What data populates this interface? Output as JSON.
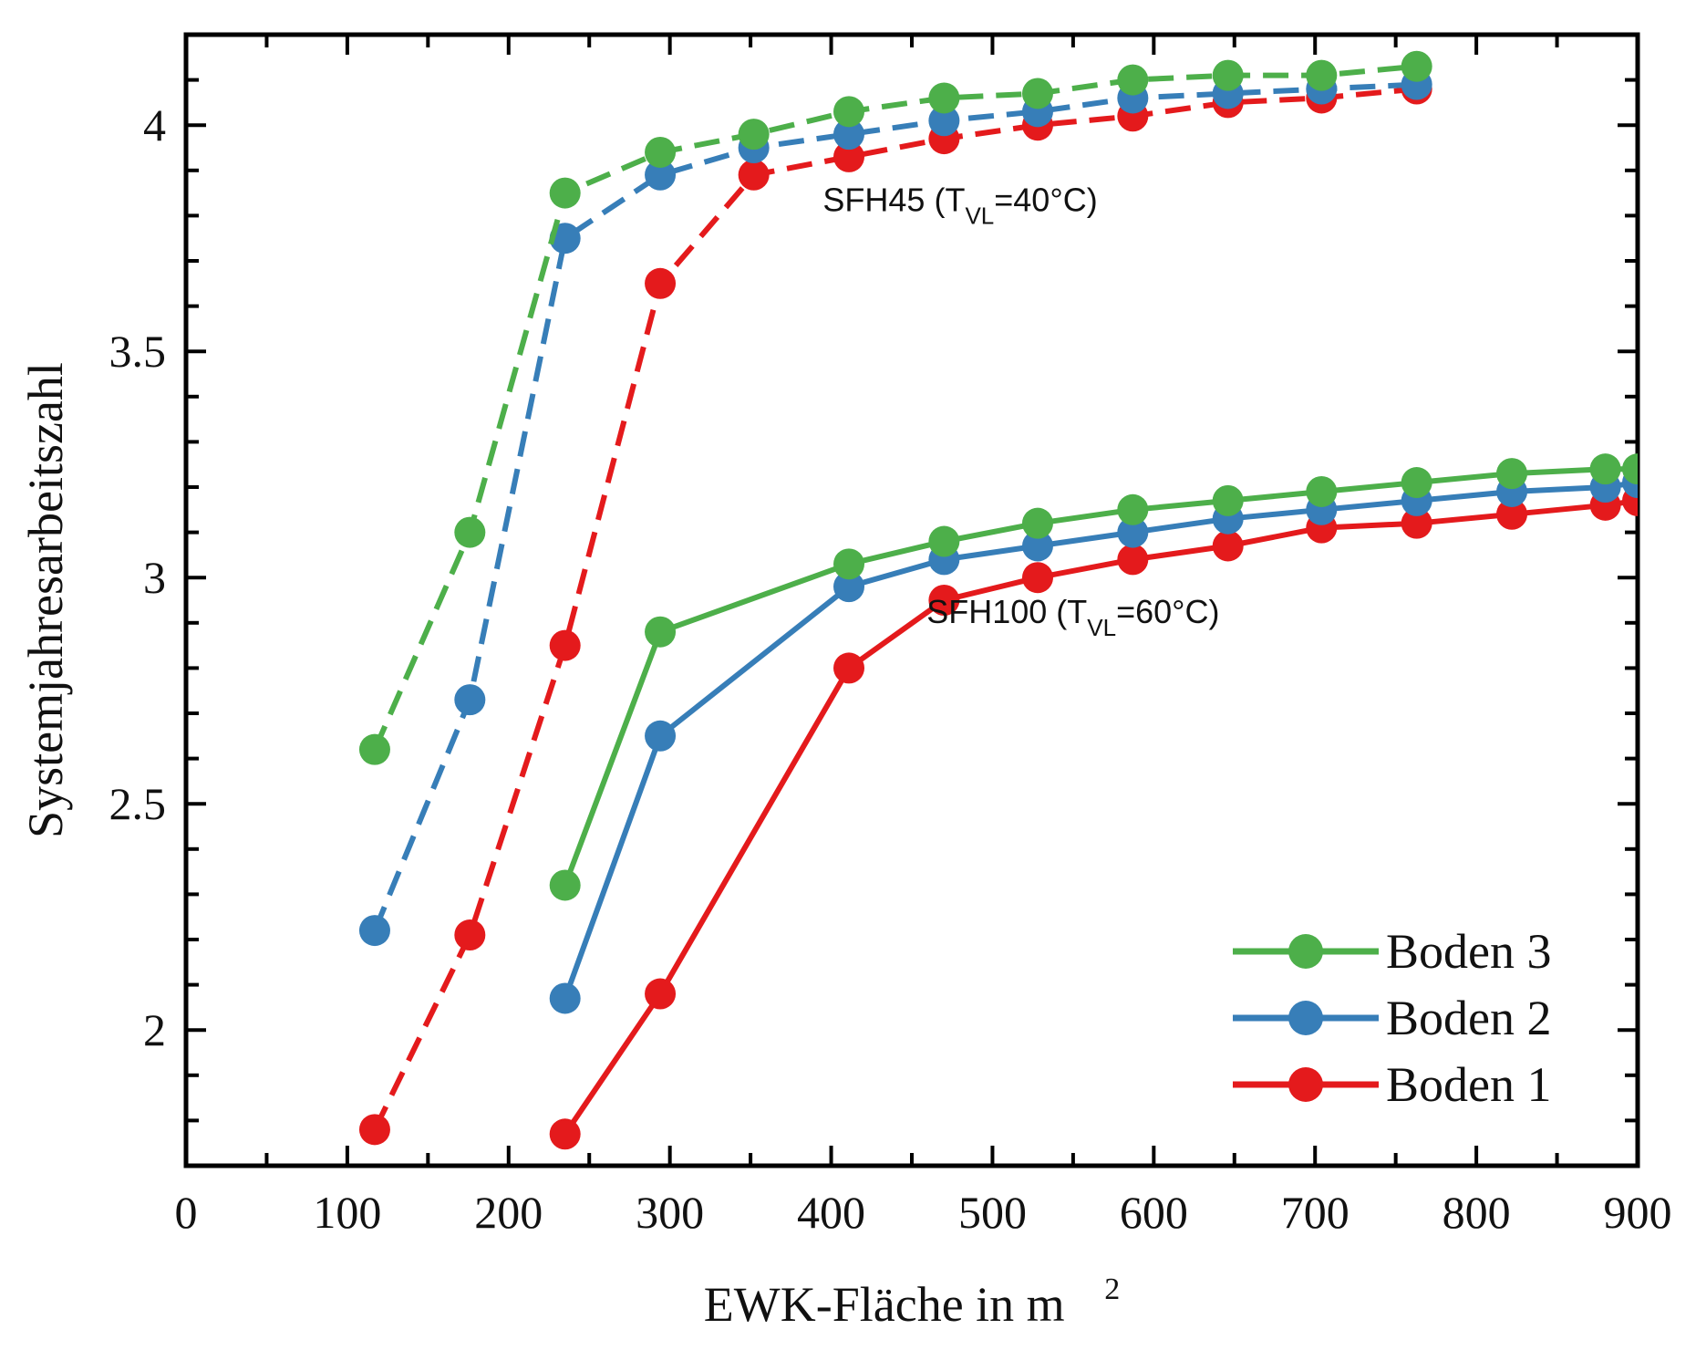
{
  "chart_data": {
    "type": "line",
    "xlabel": "EWK-Fläche in m",
    "xlabel_sup": "2",
    "ylabel": "Systemjahresarbeitszahl",
    "xlim": [
      0,
      900
    ],
    "ylim": [
      1.7,
      4.2
    ],
    "xticks": [
      0,
      100,
      200,
      300,
      400,
      500,
      600,
      700,
      800,
      900
    ],
    "xtick_labels": [
      "0",
      "100",
      "200",
      "300",
      "400",
      "500",
      "600",
      "700",
      "800",
      "900"
    ],
    "yticks": [
      2,
      2.5,
      3,
      3.5,
      4
    ],
    "ytick_labels": [
      "2",
      "2.5",
      "3",
      "3.5",
      "4"
    ],
    "grid": false,
    "legend_position": "bottom-right",
    "colors": {
      "Boden 3": "#4daf4a",
      "Boden 2": "#377eb8",
      "Boden 1": "#e41a1c"
    },
    "annotations": [
      {
        "main": "SFH45 (T",
        "sub": "VL",
        "rest": "=40°C)",
        "at": [
          480,
          3.81
        ]
      },
      {
        "main": "SFH100 (T",
        "sub": "VL",
        "rest": "=60°C)",
        "at": [
          550,
          2.9
        ]
      }
    ],
    "legend": [
      "Boden 3",
      "Boden 2",
      "Boden 1"
    ],
    "series": [
      {
        "name": "Boden 3",
        "case": "SFH45",
        "style": "dashed",
        "x": [
          117,
          176,
          235,
          294,
          352,
          411,
          470,
          528,
          587,
          646,
          704,
          763
        ],
        "y": [
          2.62,
          3.1,
          3.85,
          3.94,
          3.98,
          4.03,
          4.06,
          4.07,
          4.1,
          4.11,
          4.11,
          4.13
        ]
      },
      {
        "name": "Boden 2",
        "case": "SFH45",
        "style": "dashed",
        "x": [
          117,
          176,
          235,
          294,
          352,
          411,
          470,
          528,
          587,
          646,
          704,
          763
        ],
        "y": [
          2.22,
          2.73,
          3.75,
          3.89,
          3.95,
          3.98,
          4.01,
          4.03,
          4.06,
          4.07,
          4.08,
          4.09
        ]
      },
      {
        "name": "Boden 1",
        "case": "SFH45",
        "style": "dashed",
        "x": [
          117,
          176,
          235,
          294,
          352,
          411,
          470,
          528,
          587,
          646,
          704,
          763
        ],
        "y": [
          1.78,
          2.21,
          2.85,
          3.65,
          3.89,
          3.93,
          3.97,
          4.0,
          4.02,
          4.05,
          4.06,
          4.08
        ]
      },
      {
        "name": "Boden 3",
        "case": "SFH100",
        "style": "solid",
        "x": [
          235,
          294,
          411,
          470,
          528,
          587,
          646,
          704,
          763,
          822,
          880,
          900
        ],
        "y": [
          2.32,
          2.88,
          3.03,
          3.08,
          3.12,
          3.15,
          3.17,
          3.19,
          3.21,
          3.23,
          3.24,
          3.24
        ]
      },
      {
        "name": "Boden 2",
        "case": "SFH100",
        "style": "solid",
        "x": [
          235,
          294,
          411,
          470,
          528,
          587,
          646,
          704,
          763,
          822,
          880,
          900
        ],
        "y": [
          2.07,
          2.65,
          2.98,
          3.04,
          3.07,
          3.1,
          3.13,
          3.15,
          3.17,
          3.19,
          3.2,
          3.21
        ]
      },
      {
        "name": "Boden 1",
        "case": "SFH100",
        "style": "solid",
        "x": [
          235,
          294,
          411,
          470,
          528,
          587,
          646,
          704,
          763,
          822,
          880,
          900
        ],
        "y": [
          1.77,
          2.08,
          2.8,
          2.95,
          3.0,
          3.04,
          3.07,
          3.11,
          3.12,
          3.14,
          3.16,
          3.17
        ]
      }
    ]
  }
}
